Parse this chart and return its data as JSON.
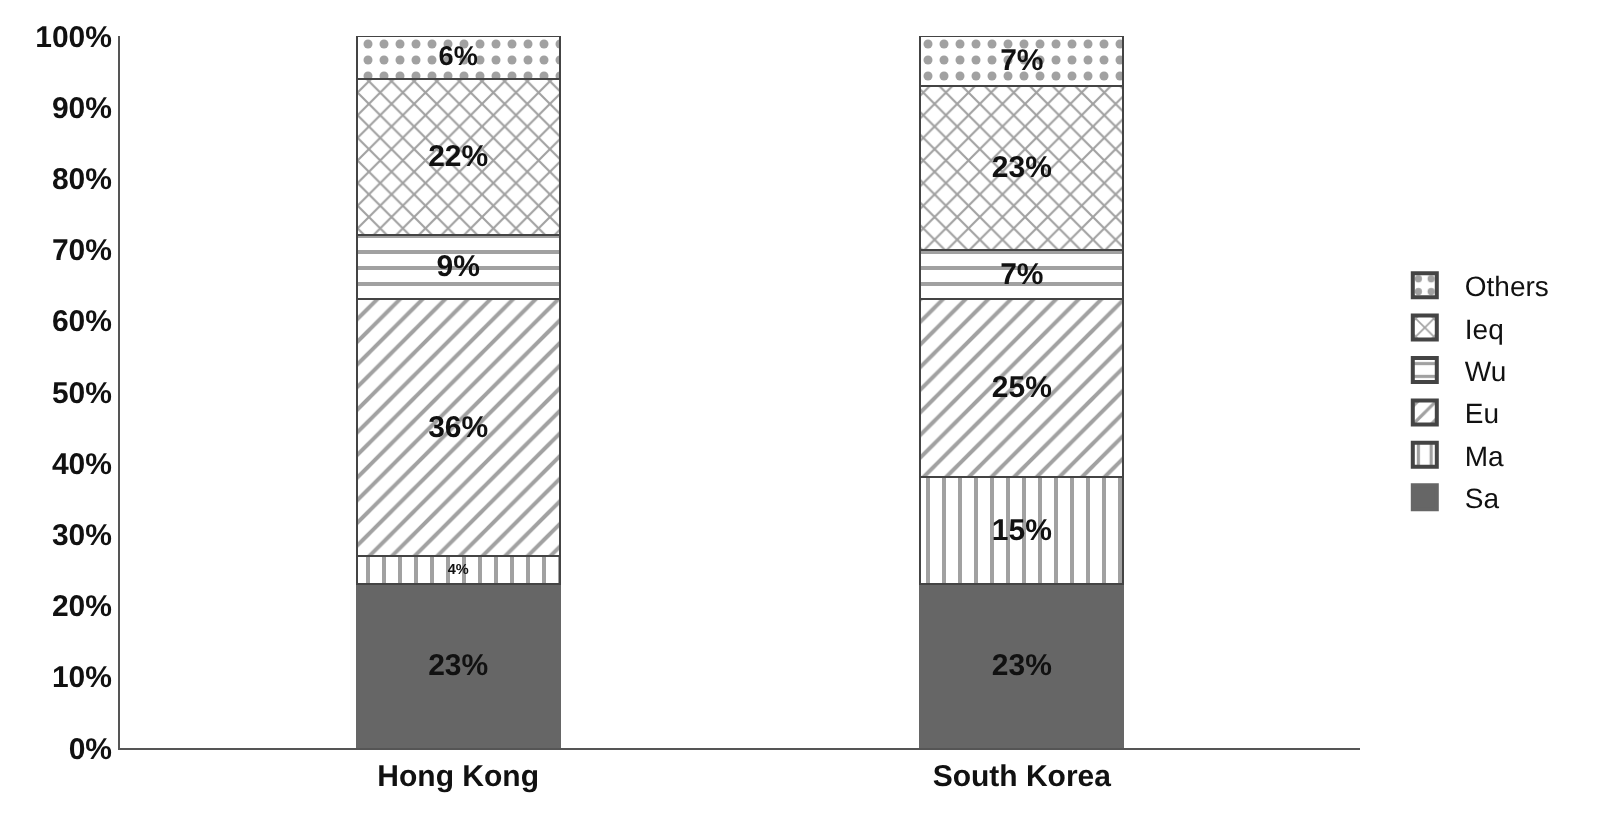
{
  "chart_data": {
    "type": "bar",
    "stacked": true,
    "categories": [
      "Hong Kong",
      "South Korea"
    ],
    "series": [
      {
        "name": "Sa",
        "color": "#666666",
        "values": [
          23,
          23
        ],
        "value_labels": [
          "23%",
          "23%"
        ]
      },
      {
        "name": "Ma",
        "color": "#444444",
        "values": [
          4,
          15
        ],
        "value_labels": [
          "4%",
          "15%"
        ]
      },
      {
        "name": "Eu",
        "color": "#444444",
        "values": [
          36,
          25
        ],
        "value_labels": [
          "36%",
          "25%"
        ]
      },
      {
        "name": "Wu",
        "color": "#444444",
        "values": [
          9,
          7
        ],
        "value_labels": [
          "9%",
          "7%"
        ]
      },
      {
        "name": "Ieq",
        "color": "#444444",
        "values": [
          22,
          23
        ],
        "value_labels": [
          "22%",
          "23%"
        ]
      },
      {
        "name": "Others",
        "color": "#444444",
        "values": [
          6,
          7
        ],
        "value_labels": [
          "6%",
          "7%"
        ]
      }
    ],
    "ylim": [
      0,
      100
    ],
    "yticks": [
      {
        "value": 0,
        "label": "0%"
      },
      {
        "value": 10,
        "label": "10%"
      },
      {
        "value": 20,
        "label": "20%"
      },
      {
        "value": 30,
        "label": "30%"
      },
      {
        "value": 40,
        "label": "40%"
      },
      {
        "value": 50,
        "label": "50%"
      },
      {
        "value": 60,
        "label": "60%"
      },
      {
        "value": 70,
        "label": "70%"
      },
      {
        "value": 80,
        "label": "80%"
      },
      {
        "value": 90,
        "label": "90%"
      },
      {
        "value": 100,
        "label": "100%"
      }
    ],
    "legend": "right"
  }
}
